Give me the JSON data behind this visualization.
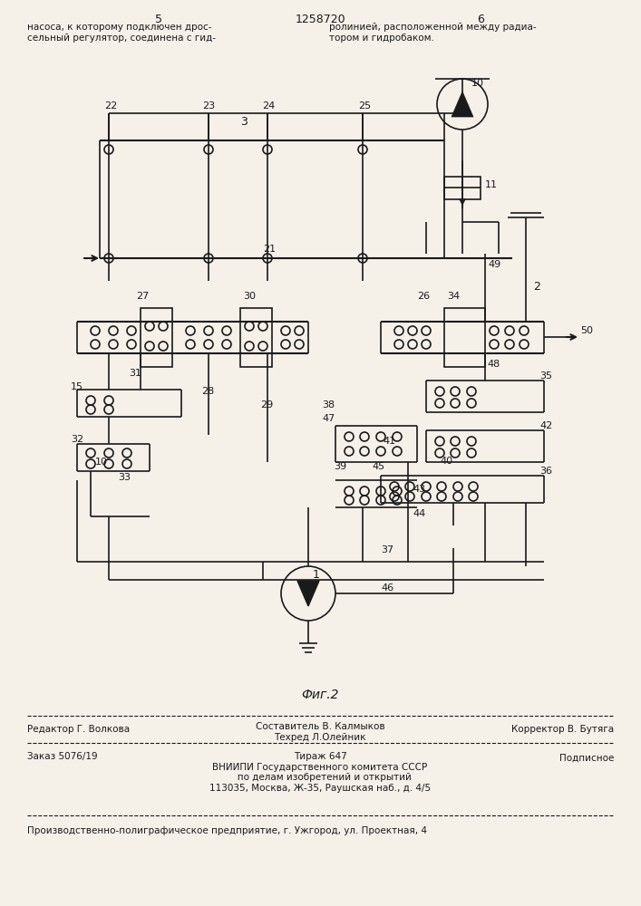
{
  "title": "1258720",
  "page_left": "5",
  "page_right": "6",
  "text_left": "насоса, к которому подключен дрос-\nсельный регулятор, соединена с гид-",
  "text_right": "ролинией, расположенной между радиа-\nтором и гидробаком.",
  "fig_caption": "Фиг.2",
  "footer_line1_left": "Редактор Г. Волкова",
  "footer_line1_mid": "Составитель В. Калмыков\nТехред Л.Олейник",
  "footer_line1_right": "Корректор В. Бутяга",
  "footer_line2_left": "Заказ 5076/19",
  "footer_line2_mid": "Тираж 647\nВНИИПИ Государственного комитета СССР\n   по делам изобретений и открытий\n113035, Москва, Ж-35, Раушская наб., д. 4/5",
  "footer_line2_right": "Подписное",
  "footer_last": "Производственно-полиграфическое предприятие, г. Ужгород, ул. Проектная, 4",
  "bg_color": "#f5f0e8",
  "line_color": "#1a1a1a"
}
